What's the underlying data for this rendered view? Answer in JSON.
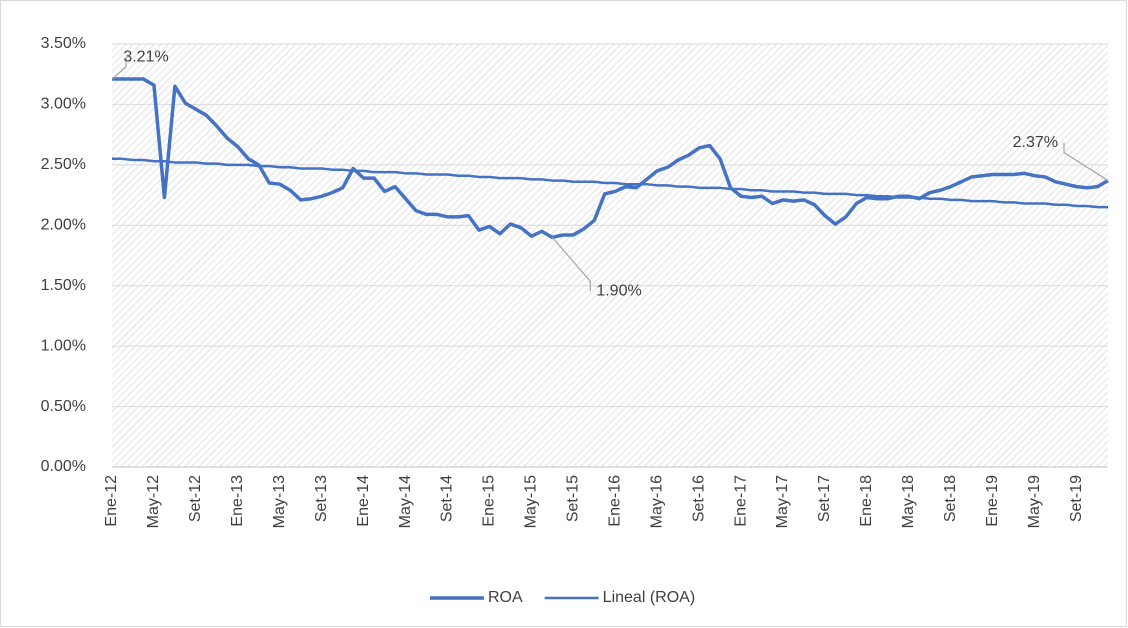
{
  "chart_data": {
    "type": "line",
    "categories": [
      "Ene-12",
      null,
      null,
      null,
      "May-12",
      null,
      null,
      null,
      "Set-12",
      null,
      null,
      null,
      "Ene-13",
      null,
      null,
      null,
      "May-13",
      null,
      null,
      null,
      "Set-13",
      null,
      null,
      null,
      "Ene-14",
      null,
      null,
      null,
      "May-14",
      null,
      null,
      null,
      "Set-14",
      null,
      null,
      null,
      "Ene-15",
      null,
      null,
      null,
      "May-15",
      null,
      null,
      null,
      "Set-15",
      null,
      null,
      null,
      "Ene-16",
      null,
      null,
      null,
      "May-16",
      null,
      null,
      null,
      "Set-16",
      null,
      null,
      null,
      "Ene-17",
      null,
      null,
      null,
      "May-17",
      null,
      null,
      null,
      "Set-17",
      null,
      null,
      null,
      "Ene-18",
      null,
      null,
      null,
      "May-18",
      null,
      null,
      null,
      "Set-18",
      null,
      null,
      null,
      "Ene-19",
      null,
      null,
      null,
      "May-19",
      null,
      null,
      null,
      "Set-19",
      null,
      null,
      null
    ],
    "series": [
      {
        "name": "ROA",
        "color": "#4472c4",
        "values": [
          3.21,
          3.21,
          3.21,
          3.21,
          3.16,
          2.23,
          3.15,
          3.01,
          2.96,
          2.91,
          2.82,
          2.72,
          2.65,
          2.55,
          2.5,
          2.35,
          2.34,
          2.29,
          2.21,
          2.22,
          2.24,
          2.27,
          2.31,
          2.47,
          2.39,
          2.39,
          2.28,
          2.32,
          2.22,
          2.12,
          2.09,
          2.09,
          2.07,
          2.07,
          2.08,
          1.96,
          1.99,
          1.93,
          2.01,
          1.98,
          1.91,
          1.95,
          1.9,
          1.92,
          1.92,
          1.97,
          2.04,
          2.26,
          2.28,
          2.32,
          2.31,
          2.38,
          2.45,
          2.48,
          2.54,
          2.58,
          2.64,
          2.66,
          2.55,
          2.31,
          2.24,
          2.23,
          2.24,
          2.18,
          2.21,
          2.2,
          2.21,
          2.17,
          2.08,
          2.01,
          2.07,
          2.18,
          2.23,
          2.22,
          2.22,
          2.24,
          2.24,
          2.22,
          2.27,
          2.29,
          2.32,
          2.36,
          2.4,
          2.41,
          2.42,
          2.42,
          2.42,
          2.43,
          2.41,
          2.4,
          2.36,
          2.34,
          2.32,
          2.31,
          2.32,
          2.37
        ],
        "value_labels": [
          "3.21%",
          null,
          null,
          null,
          null,
          null,
          null,
          null,
          null,
          null,
          null,
          null,
          null,
          null,
          null,
          null,
          null,
          null,
          null,
          null,
          null,
          null,
          null,
          null,
          null,
          null,
          null,
          null,
          null,
          null,
          null,
          null,
          null,
          null,
          null,
          null,
          null,
          null,
          null,
          null,
          null,
          null,
          "1.90%",
          null,
          null,
          null,
          null,
          null,
          null,
          null,
          null,
          null,
          null,
          null,
          null,
          null,
          null,
          null,
          null,
          null,
          null,
          null,
          null,
          null,
          null,
          null,
          null,
          null,
          null,
          null,
          null,
          null,
          null,
          null,
          null,
          null,
          null,
          null,
          null,
          null,
          null,
          null,
          null,
          null,
          null,
          null,
          null,
          null,
          null,
          null,
          null,
          null,
          null,
          null,
          null,
          "2.37%"
        ]
      },
      {
        "name": "Lineal (ROA)",
        "color": "#4472c4",
        "values": [
          2.55,
          2.55,
          2.54,
          2.54,
          2.53,
          2.53,
          2.52,
          2.52,
          2.52,
          2.51,
          2.51,
          2.5,
          2.5,
          2.5,
          2.49,
          2.49,
          2.48,
          2.48,
          2.47,
          2.47,
          2.47,
          2.46,
          2.46,
          2.45,
          2.45,
          2.44,
          2.44,
          2.44,
          2.43,
          2.43,
          2.42,
          2.42,
          2.42,
          2.41,
          2.41,
          2.4,
          2.4,
          2.39,
          2.39,
          2.39,
          2.38,
          2.38,
          2.37,
          2.37,
          2.36,
          2.36,
          2.36,
          2.35,
          2.35,
          2.34,
          2.34,
          2.34,
          2.33,
          2.33,
          2.32,
          2.32,
          2.31,
          2.31,
          2.31,
          2.3,
          2.3,
          2.29,
          2.29,
          2.28,
          2.28,
          2.28,
          2.27,
          2.27,
          2.26,
          2.26,
          2.26,
          2.25,
          2.25,
          2.24,
          2.24,
          2.23,
          2.23,
          2.23,
          2.22,
          2.22,
          2.21,
          2.21,
          2.2,
          2.2,
          2.2,
          2.19,
          2.19,
          2.18,
          2.18,
          2.18,
          2.17,
          2.17,
          2.16,
          2.16,
          2.15,
          2.15
        ]
      }
    ],
    "ylim": [
      0,
      3.5
    ],
    "yticks": [
      {
        "value": 0,
        "label": "0.00%"
      },
      {
        "value": 0.5,
        "label": "0.50%"
      },
      {
        "value": 1,
        "label": "1.00%"
      },
      {
        "value": 1.5,
        "label": "1.50%"
      },
      {
        "value": 2,
        "label": "2.00%"
      },
      {
        "value": 2.5,
        "label": "2.50%"
      },
      {
        "value": 3,
        "label": "3.00%"
      },
      {
        "value": 3.5,
        "label": "3.50%"
      }
    ],
    "grid": true,
    "legend": "bottom"
  }
}
